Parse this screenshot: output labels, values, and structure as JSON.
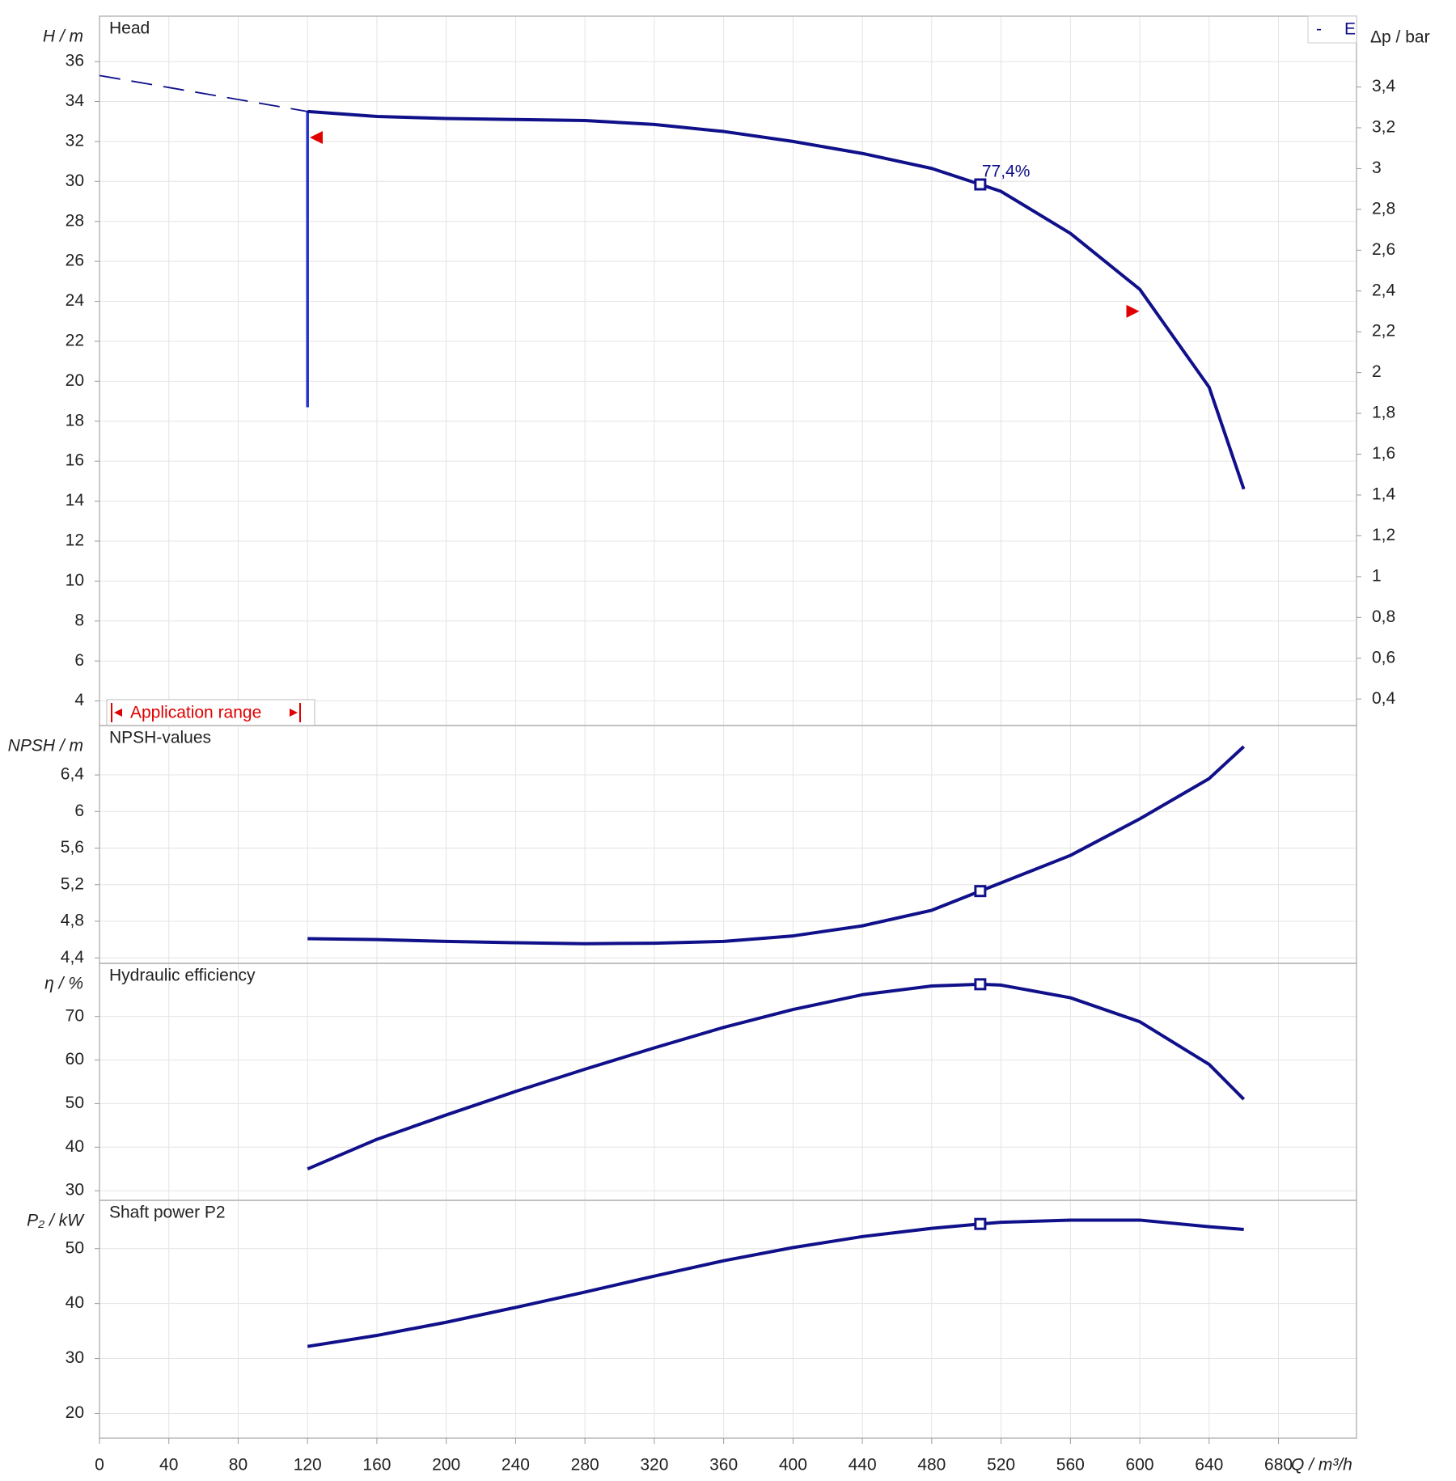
{
  "chart_data": [
    {
      "type": "line",
      "title": "Head",
      "ylabel": "H / m",
      "y2label": "Δp / bar",
      "corner_label": [
        "-",
        "E"
      ],
      "x": [
        0,
        40,
        80,
        120,
        160,
        200,
        240,
        280,
        320,
        360,
        400,
        440,
        480,
        508,
        520,
        560,
        600,
        640,
        660
      ],
      "series": [
        {
          "color": "#10108a",
          "style": "dashed",
          "values": [
            35.3,
            34.7,
            34.1,
            33.5,
            null,
            null,
            null,
            null,
            null,
            null,
            null,
            null,
            null,
            null,
            null,
            null,
            null,
            null,
            null
          ]
        },
        {
          "color": "#10108a",
          "style": "solid",
          "values": [
            null,
            null,
            null,
            33.5,
            33.25,
            33.15,
            33.1,
            33.05,
            32.85,
            32.5,
            32.0,
            31.4,
            30.65,
            29.85,
            29.5,
            27.4,
            24.6,
            19.7,
            14.6
          ]
        }
      ],
      "ylim": [
        2.77,
        38.27
      ],
      "yticks": [
        4,
        6,
        8,
        10,
        12,
        14,
        16,
        18,
        20,
        22,
        24,
        26,
        28,
        30,
        32,
        34,
        36
      ],
      "y2lim": [
        0.27,
        3.747
      ],
      "y2ticks": [
        {
          "value": 0.4,
          "label": "0,4"
        },
        {
          "value": 0.6,
          "label": "0,6"
        },
        {
          "value": 0.8,
          "label": "0,8"
        },
        1,
        {
          "value": 1.2,
          "label": "1,2"
        },
        {
          "value": 1.4,
          "label": "1,4"
        },
        {
          "value": 1.6,
          "label": "1,6"
        },
        {
          "value": 1.8,
          "label": "1,8"
        },
        2,
        {
          "value": 2.2,
          "label": "2,2"
        },
        {
          "value": 2.4,
          "label": "2,4"
        },
        {
          "value": 2.6,
          "label": "2,6"
        },
        {
          "value": 2.8,
          "label": "2,8"
        },
        3,
        {
          "value": 3.2,
          "label": "3,2"
        },
        {
          "value": 3.4,
          "label": "3,4"
        }
      ],
      "min_flow": {
        "x": 120,
        "values": [
          18.7,
          33.5
        ],
        "color": "#2233cc"
      },
      "duty_point": {
        "x": 508,
        "label": "77,4%"
      },
      "range_markers": [
        {
          "x": 125,
          "y": 32.2,
          "direction": "left"
        },
        {
          "x": 596,
          "y": 23.5,
          "direction": "right"
        }
      ],
      "range_label": "Application range",
      "range_color": "#e00000",
      "grid": true
    },
    {
      "type": "line",
      "title": "NPSH-values",
      "ylabel": "NPSH / m",
      "x": [
        0,
        40,
        80,
        120,
        160,
        200,
        240,
        280,
        320,
        360,
        400,
        440,
        480,
        508,
        520,
        560,
        600,
        640,
        660
      ],
      "series": [
        {
          "color": "#10108a",
          "style": "solid",
          "values": [
            null,
            null,
            null,
            4.61,
            4.6,
            4.58,
            4.565,
            4.555,
            4.56,
            4.58,
            4.64,
            4.75,
            4.92,
            5.13,
            5.22,
            5.52,
            5.92,
            6.36,
            6.71
          ]
        }
      ],
      "ylim": [
        4.34,
        6.94
      ],
      "yticks": [
        {
          "value": 4.4,
          "label": "4,4"
        },
        {
          "value": 4.8,
          "label": "4,8"
        },
        {
          "value": 5.2,
          "label": "5,2"
        },
        {
          "value": 5.6,
          "label": "5,6"
        },
        6,
        {
          "value": 6.4,
          "label": "6,4"
        }
      ],
      "grid": true
    },
    {
      "type": "line",
      "title": "Hydraulic efficiency",
      "ylabel": "η / %",
      "x": [
        0,
        40,
        80,
        120,
        160,
        200,
        240,
        280,
        320,
        360,
        400,
        440,
        480,
        508,
        520,
        560,
        600,
        640,
        660
      ],
      "series": [
        {
          "color": "#10108a",
          "style": "solid",
          "values": [
            null,
            null,
            null,
            35,
            41.8,
            47.4,
            52.8,
            57.9,
            62.8,
            67.5,
            71.6,
            75,
            77,
            77.4,
            77.2,
            74.3,
            68.8,
            59,
            51
          ]
        }
      ],
      "ylim": [
        27.8,
        82.2
      ],
      "yticks": [
        30,
        40,
        50,
        60,
        70
      ],
      "grid": true
    },
    {
      "type": "line",
      "title": "Shaft power P2",
      "ylabel": "P₂ / kW",
      "xlabel": "Q / m³/h",
      "x": [
        0,
        40,
        80,
        120,
        160,
        200,
        240,
        280,
        320,
        360,
        400,
        440,
        480,
        508,
        520,
        560,
        600,
        640,
        660
      ],
      "series": [
        {
          "color": "#10108a",
          "style": "solid",
          "values": [
            null,
            null,
            null,
            32.2,
            34.2,
            36.6,
            39.3,
            42.1,
            45,
            47.8,
            50.2,
            52.2,
            53.7,
            54.5,
            54.8,
            55.2,
            55.2,
            54,
            53.5
          ]
        }
      ],
      "ylim": [
        15.5,
        58.8
      ],
      "yticks": [
        20,
        30,
        40,
        50
      ],
      "xlim": [
        0,
        725
      ],
      "xticks": [
        0,
        40,
        80,
        120,
        160,
        200,
        240,
        280,
        320,
        360,
        400,
        440,
        480,
        520,
        560,
        600,
        640,
        680
      ],
      "grid": true
    }
  ]
}
